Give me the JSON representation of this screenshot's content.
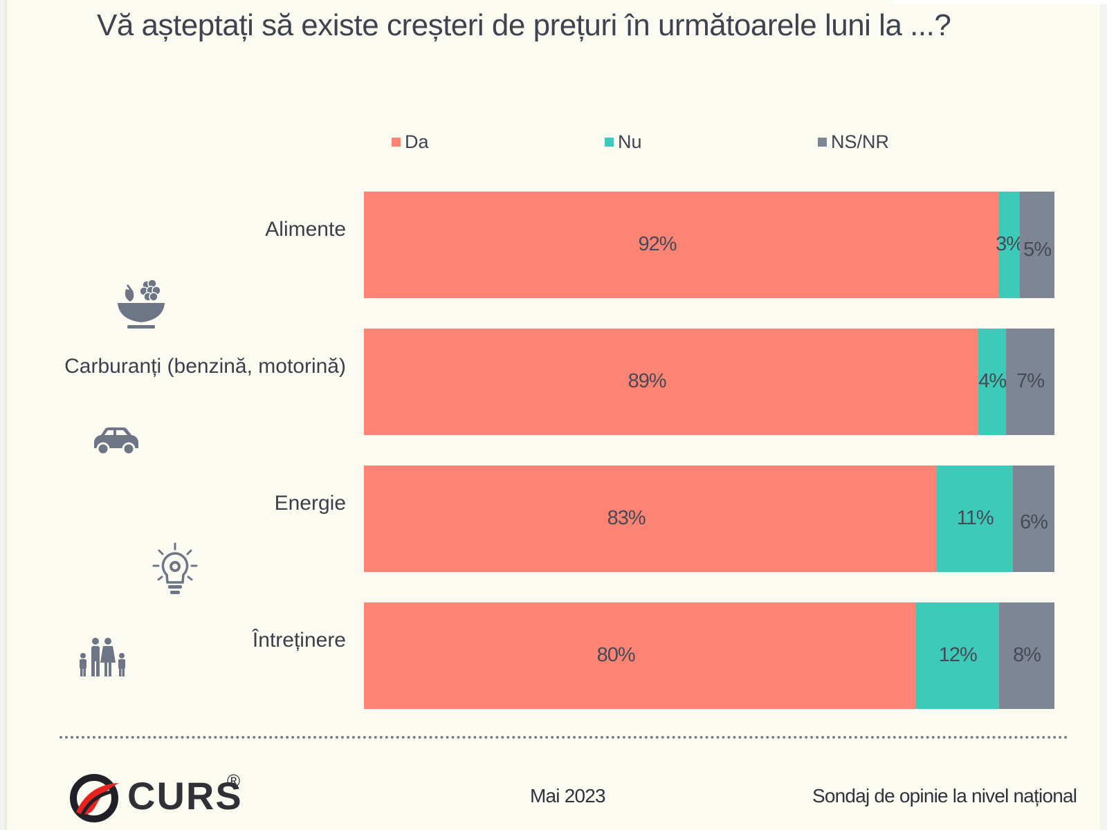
{
  "chart_data": {
    "type": "bar",
    "orientation": "horizontal-stacked",
    "title": "Vă așteptați să existe creșteri de prețuri în următoarele luni la ...?",
    "categories": [
      "Alimente",
      "Carburanți (benzină, motorină)",
      "Energie",
      "Întreținere"
    ],
    "series": [
      {
        "name": "Da",
        "color": "#fd8474",
        "values": [
          92,
          89,
          83,
          80
        ],
        "labels": [
          "92%",
          "89%",
          "83%",
          "80%"
        ]
      },
      {
        "name": "Nu",
        "color": "#3dcab9",
        "values": [
          3,
          4,
          11,
          12
        ],
        "labels": [
          "3%",
          "4%",
          "11%",
          "12%"
        ]
      },
      {
        "name": "NS/NR",
        "color": "#7e8594",
        "values": [
          5,
          7,
          6,
          8
        ],
        "labels": [
          "5%",
          "7%",
          "6%",
          "8%"
        ]
      }
    ],
    "xlim": [
      0,
      100
    ],
    "legend_position": "top"
  },
  "icons": [
    "fruit-bowl-icon",
    "car-icon",
    "lightbulb-gear-icon",
    "family-icon"
  ],
  "footer": {
    "logo_text": "CURS",
    "logo_reg": "®",
    "date": "Mai 2023",
    "note": "Sondaj de opinie la nivel național"
  }
}
